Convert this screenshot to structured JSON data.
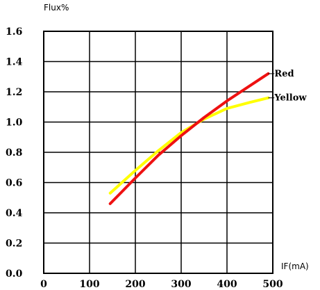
{
  "chart_data": {
    "type": "line",
    "title": "",
    "xlabel": "IF(mA)",
    "ylabel": "Flux%",
    "xlim": [
      0,
      500
    ],
    "ylim": [
      0.0,
      1.6
    ],
    "x_ticks": [
      "0",
      "100",
      "200",
      "300",
      "400",
      "500"
    ],
    "y_ticks": [
      "0.0",
      "0.2",
      "0.4",
      "0.6",
      "0.8",
      "1.0",
      "1.2",
      "1.4",
      "1.6"
    ],
    "grid": true,
    "legend": "inline-right",
    "series": [
      {
        "name": "Yellow",
        "color": "#ffff00",
        "x": [
          145,
          200,
          250,
          300,
          350,
          400,
          450,
          490
        ],
        "y": [
          0.53,
          0.68,
          0.81,
          0.93,
          1.02,
          1.09,
          1.13,
          1.16
        ]
      },
      {
        "name": "Red",
        "color": "#ee1111",
        "x": [
          145,
          200,
          250,
          300,
          350,
          400,
          450,
          490
        ],
        "y": [
          0.46,
          0.63,
          0.78,
          0.91,
          1.03,
          1.14,
          1.24,
          1.32
        ]
      }
    ]
  }
}
